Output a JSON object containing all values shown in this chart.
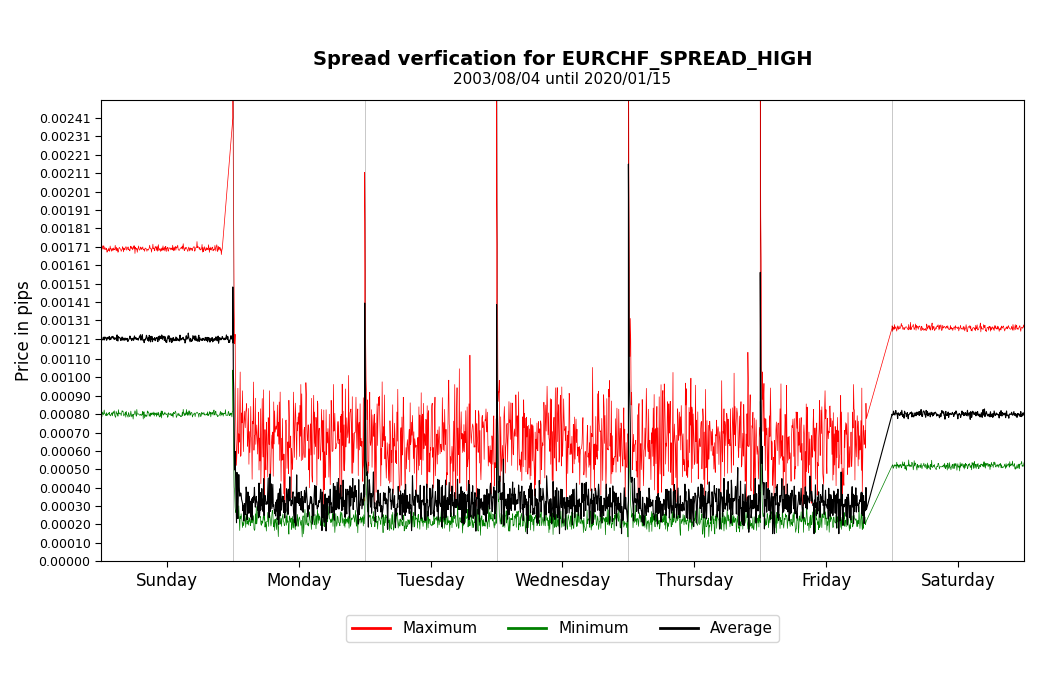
{
  "title": "Spread verfication for EURCHF_SPREAD_HIGH",
  "subtitle": "2003/08/04 until 2020/01/15",
  "ylabel": "Price in pips",
  "x_labels": [
    "Sunday",
    "Monday",
    "Tuesday",
    "Wednesday",
    "Thursday",
    "Friday",
    "Saturday"
  ],
  "x_tick_pos": [
    0.5,
    1.5,
    2.5,
    3.5,
    4.5,
    5.5,
    6.5
  ],
  "ylim": [
    0.0,
    0.00251
  ],
  "yticks": [
    0.0,
    0.0001,
    0.0002,
    0.0003,
    0.0004,
    0.0005,
    0.0006,
    0.0007,
    0.0008,
    0.0009,
    0.001,
    0.0011,
    0.00121,
    0.00131,
    0.00141,
    0.00151,
    0.00161,
    0.00171,
    0.00181,
    0.00191,
    0.00201,
    0.00211,
    0.00221,
    0.00231,
    0.00241
  ],
  "color_max": "#ff0000",
  "color_min": "#008000",
  "color_avg": "#000000",
  "legend_entries": [
    "Maximum",
    "Minimum",
    "Average"
  ],
  "num_points": 2016,
  "sunday_red_level": 0.0017,
  "sunday_black_level": 0.00121,
  "sunday_green_level": 0.0008,
  "saturday_red_level": 0.00127,
  "saturday_black_level": 0.0008,
  "saturday_green_level": 0.00052
}
